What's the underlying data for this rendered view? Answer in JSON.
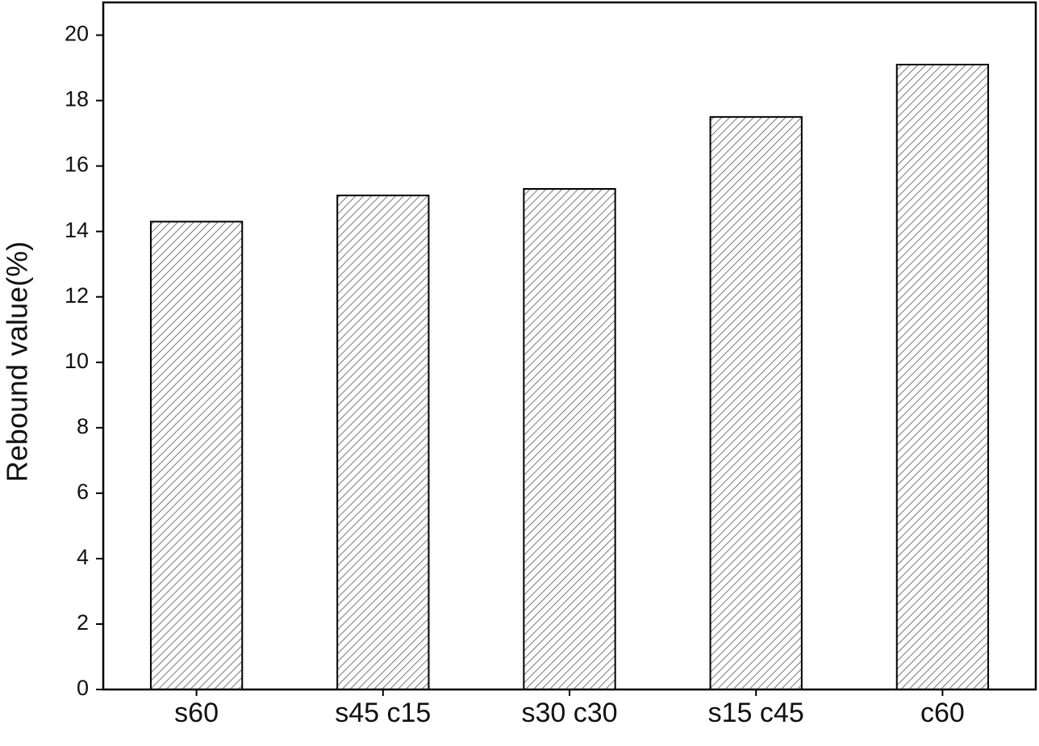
{
  "chart_data": {
    "type": "bar",
    "y_label": "Rebound value(%)",
    "categories": [
      "s60",
      "s45 c15",
      "s30 c30",
      "s15 c45",
      "c60"
    ],
    "values": [
      14.3,
      15.1,
      15.3,
      17.5,
      19.1
    ],
    "color": "#555555",
    "hatch": true,
    "ylim": [
      0,
      21
    ],
    "yticks": [
      0,
      2,
      4,
      6,
      8,
      10,
      12,
      14,
      16,
      18,
      20
    ],
    "grid": false
  }
}
